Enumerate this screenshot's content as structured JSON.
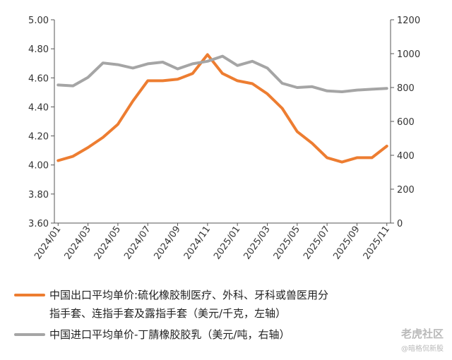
{
  "chart_data": {
    "type": "line",
    "title": "",
    "xlabel": "",
    "ylabel": "",
    "x": [
      "2024/01",
      "2024/02",
      "2024/03",
      "2024/04",
      "2024/05",
      "2024/06",
      "2024/07",
      "2024/08",
      "2024/09",
      "2024/10",
      "2024/11",
      "2024/12",
      "2025/01",
      "2025/02",
      "2025/03",
      "2025/04",
      "2025/05",
      "2025/06",
      "2025/07",
      "2025/08",
      "2025/09",
      "2025/10",
      "2025/11"
    ],
    "x_tick_labels": [
      "2024/01",
      "2024/03",
      "2024/05",
      "2024/07",
      "2024/09",
      "2024/11",
      "2025/01",
      "2025/03",
      "2025/05",
      "2025/07",
      "2025/09",
      "2025/11"
    ],
    "y_left": {
      "range": [
        3.6,
        5.0
      ],
      "ticks": [
        "3.60",
        "3.80",
        "4.00",
        "4.20",
        "4.40",
        "4.60",
        "4.80",
        "5.00"
      ]
    },
    "y_right": {
      "range": [
        0,
        1200
      ],
      "ticks": [
        "0",
        "200",
        "400",
        "600",
        "800",
        "1000",
        "1200"
      ]
    },
    "grid": false,
    "legend_position": "bottom",
    "series": [
      {
        "name": "中国出口平均单价:硫化橡胶制医疗、外科、牙科或兽医用分指手套、连指手套及露指手套（美元/千克，左轴）",
        "name_lines": [
          "中国出口平均单价:硫化橡胶制医疗、外科、牙科或兽医用分",
          "指手套、连指手套及露指手套（美元/千克，左轴）"
        ],
        "axis": "left",
        "color": "#ED7D31",
        "values": [
          4.03,
          4.06,
          4.12,
          4.19,
          4.28,
          4.44,
          4.58,
          4.58,
          4.59,
          4.63,
          4.76,
          4.63,
          4.58,
          4.56,
          4.49,
          4.39,
          4.23,
          4.15,
          4.05,
          4.02,
          4.05,
          4.05,
          4.13
        ]
      },
      {
        "name": "中国进口平均单价-丁腈橡胶胶乳（美元/吨，右轴）",
        "name_lines": [
          "中国进口平均单价-丁腈橡胶胶乳（美元/吨，右轴）"
        ],
        "axis": "right",
        "color": "#A5A5A5",
        "values": [
          815,
          810,
          860,
          945,
          935,
          915,
          940,
          950,
          910,
          940,
          955,
          985,
          930,
          955,
          915,
          825,
          800,
          805,
          780,
          775,
          785,
          790,
          795
        ]
      }
    ]
  },
  "watermark": {
    "main": "老虎社区",
    "sub": "@暗格侃新股"
  }
}
